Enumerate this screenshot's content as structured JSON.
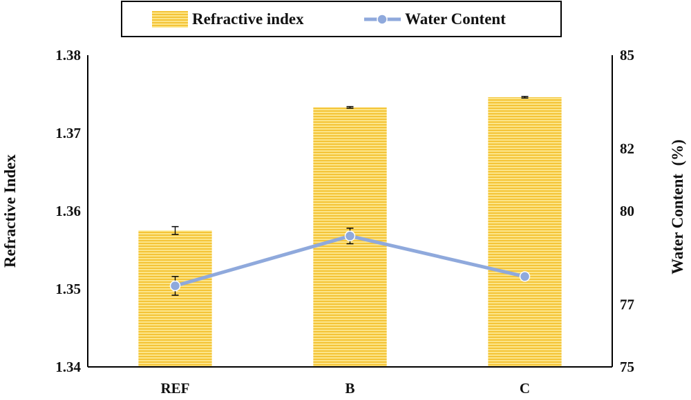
{
  "chart_data": {
    "type": "bar",
    "categories": [
      "REF",
      "B",
      "C"
    ],
    "series": [
      {
        "name": "Refractive index",
        "kind": "bar",
        "axis": "left",
        "values": [
          1.3575,
          1.3733,
          1.3746
        ],
        "errors": [
          0.0005,
          0.0001,
          0.0001
        ],
        "color": "#F6C840"
      },
      {
        "name": "Water Content",
        "kind": "line",
        "axis": "right",
        "values": [
          77.6,
          79.2,
          77.9
        ],
        "errors": [
          0.3,
          0.25,
          0
        ],
        "color": "#8FA9DC"
      }
    ],
    "ylabel": "Refractive Index",
    "y2label": "Water Content  (%)",
    "ylim": [
      1.34,
      1.38
    ],
    "y2lim": [
      75,
      85
    ],
    "yticks": [
      "1.34",
      "1.35",
      "1.36",
      "1.37",
      "1.38"
    ],
    "y2ticks": [
      "75",
      "77",
      "80",
      "82",
      "85"
    ],
    "legend_position": "top-center",
    "grid": false
  }
}
